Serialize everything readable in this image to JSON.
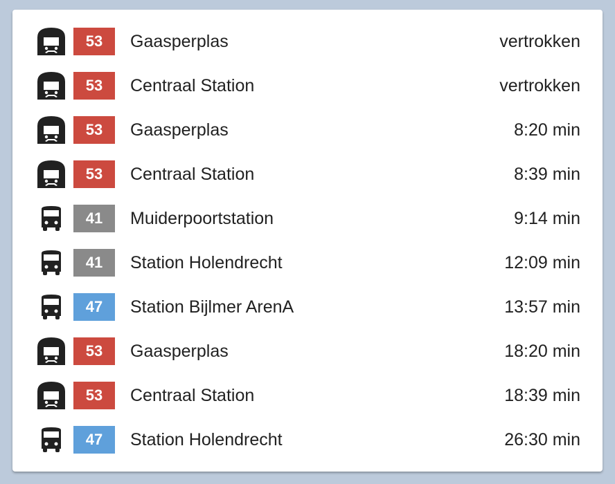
{
  "colors": {
    "53": "#cc4a3f",
    "41": "#8a8a8a",
    "47": "#5fa0db"
  },
  "departures": [
    {
      "icon": "tram-icon",
      "line": "53",
      "destination": "Gaasperplas",
      "time": "vertrokken"
    },
    {
      "icon": "tram-icon",
      "line": "53",
      "destination": "Centraal Station",
      "time": "vertrokken"
    },
    {
      "icon": "tram-icon",
      "line": "53",
      "destination": "Gaasperplas",
      "time": "8:20 min"
    },
    {
      "icon": "tram-icon",
      "line": "53",
      "destination": "Centraal Station",
      "time": "8:39 min"
    },
    {
      "icon": "bus-icon",
      "line": "41",
      "destination": "Muiderpoortstation",
      "time": "9:14 min"
    },
    {
      "icon": "bus-icon",
      "line": "41",
      "destination": "Station Holendrecht",
      "time": "12:09 min"
    },
    {
      "icon": "bus-icon",
      "line": "47",
      "destination": "Station Bijlmer ArenA",
      "time": "13:57 min"
    },
    {
      "icon": "tram-icon",
      "line": "53",
      "destination": "Gaasperplas",
      "time": "18:20 min"
    },
    {
      "icon": "tram-icon",
      "line": "53",
      "destination": "Centraal Station",
      "time": "18:39 min"
    },
    {
      "icon": "bus-icon",
      "line": "47",
      "destination": "Station Holendrecht",
      "time": "26:30 min"
    }
  ]
}
